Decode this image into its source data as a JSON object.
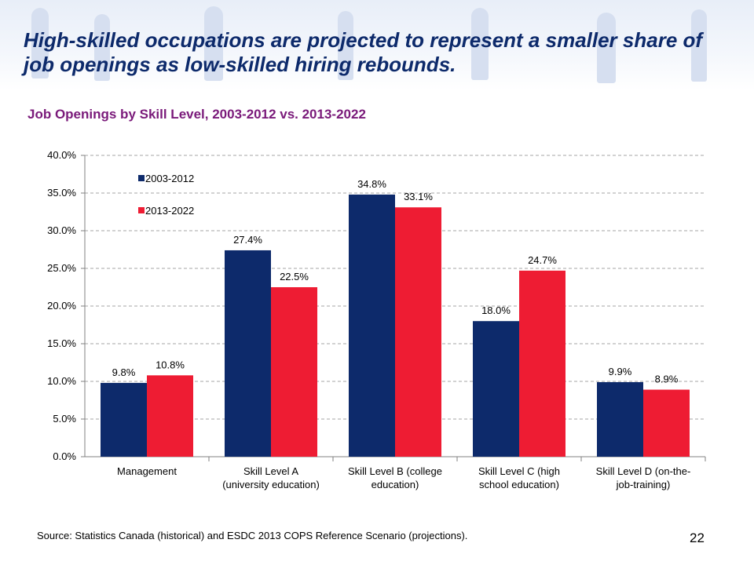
{
  "slide": {
    "headline": "High-skilled occupations are projected to represent a smaller share of job openings as low-skilled hiring rebounds.",
    "source": "Source: Statistics Canada (historical) and ESDC 2013 COPS Reference Scenario (projections).",
    "page_number": "22"
  },
  "chart_data": {
    "type": "bar",
    "title": "Job Openings by Skill Level, 2003-2012 vs. 2013-2022",
    "categories": [
      [
        "Management"
      ],
      [
        "Skill Level A",
        "(university education)"
      ],
      [
        "Skill Level B (college",
        "education)"
      ],
      [
        "Skill Level C (high",
        "school education)"
      ],
      [
        "Skill Level D (on-the-",
        "job-training)"
      ]
    ],
    "series": [
      {
        "name": "2003-2012",
        "color": "#0d2a6b",
        "values": [
          9.8,
          27.4,
          34.8,
          18.0,
          9.9
        ],
        "labels": [
          "9.8%",
          "27.4%",
          "34.8%",
          "18.0%",
          "9.9%"
        ]
      },
      {
        "name": "2013-2022",
        "color": "#ee1c33",
        "values": [
          10.8,
          22.5,
          33.1,
          24.7,
          8.9
        ],
        "labels": [
          "10.8%",
          "22.5%",
          "33.1%",
          "24.7%",
          "8.9%"
        ]
      }
    ],
    "ylim": [
      0,
      40
    ],
    "yticks": [
      "0.0%",
      "5.0%",
      "10.0%",
      "15.0%",
      "20.0%",
      "25.0%",
      "30.0%",
      "35.0%",
      "40.0%"
    ],
    "ytick_step": 5,
    "grid": true,
    "legend": "top-left"
  }
}
